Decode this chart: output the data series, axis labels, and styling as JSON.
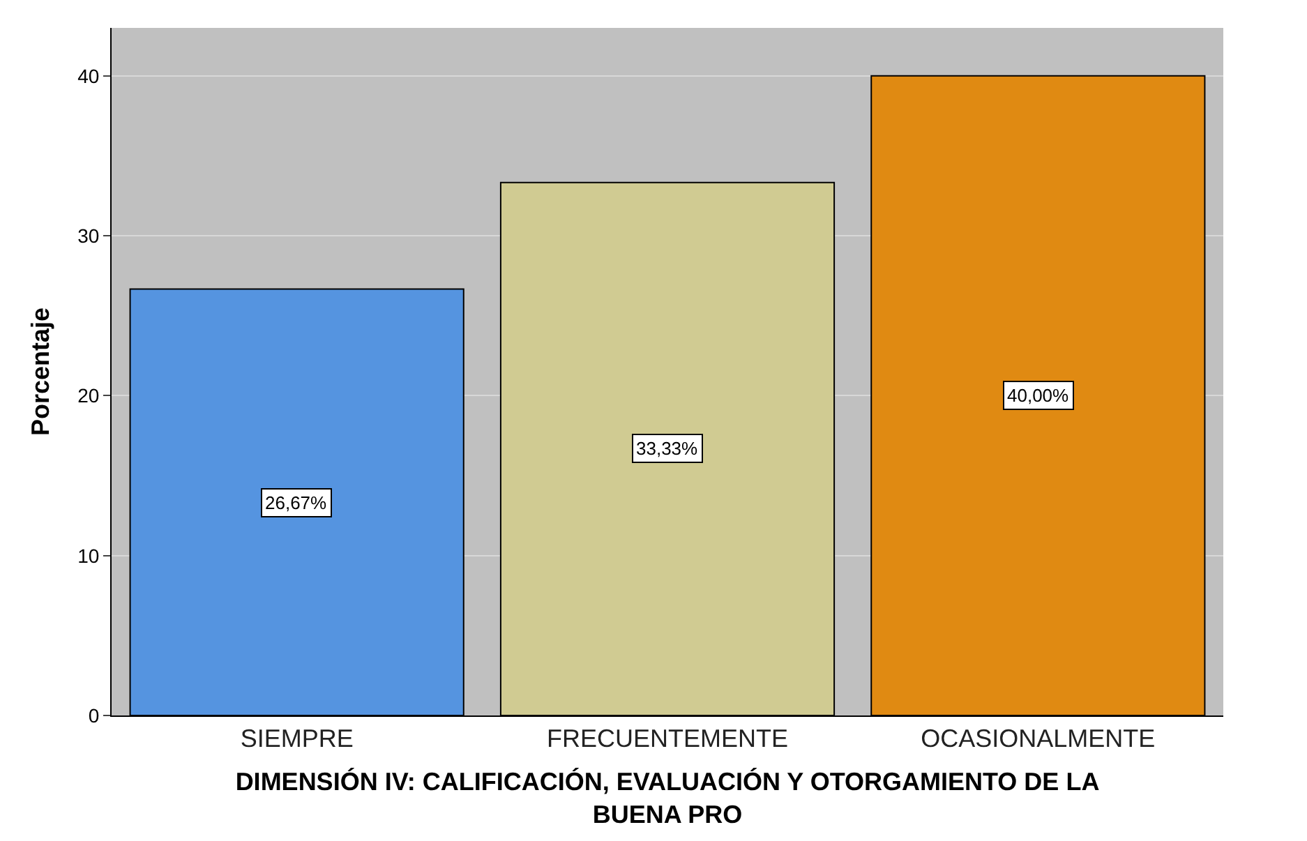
{
  "chart_data": {
    "type": "bar",
    "xlabel": "DIMENSIÓN IV: CALIFICACIÓN, EVALUACIÓN Y OTORGAMIENTO DE LA BUENA PRO",
    "ylabel": "Porcentaje",
    "categories": [
      "SIEMPRE",
      "FRECUENTEMENTE",
      "OCASIONALMENTE"
    ],
    "values": [
      26.67,
      33.33,
      40.0
    ],
    "value_labels": [
      "26,67%",
      "33,33%",
      "40,00%"
    ],
    "colors": [
      "#5594e0",
      "#d0cb92",
      "#e08a12"
    ],
    "ylim": [
      0,
      43
    ],
    "yticks": [
      0,
      10,
      20,
      30,
      40
    ],
    "grid": "y"
  }
}
